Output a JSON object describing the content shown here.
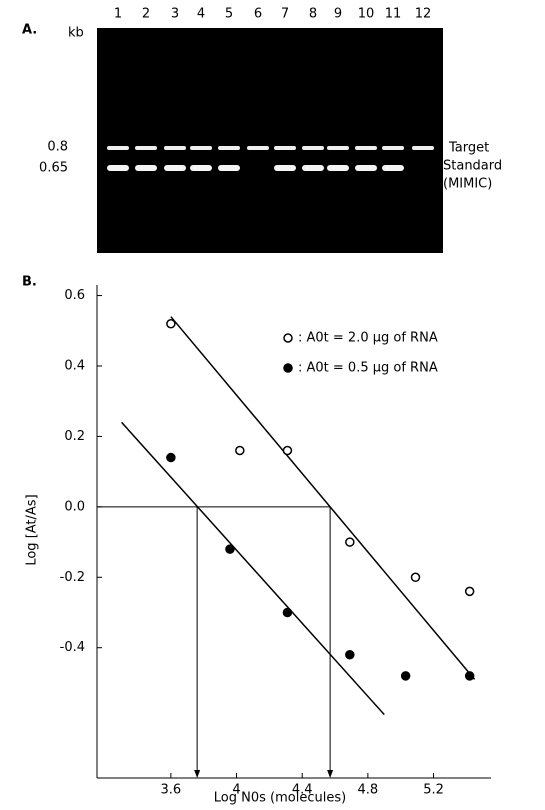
{
  "panel_a": {
    "label": "A.",
    "unit": "kb",
    "lanes": [
      "1",
      "2",
      "3",
      "4",
      "5",
      "6",
      "7",
      "8",
      "9",
      "10",
      "11",
      "12"
    ],
    "sizes": [
      "0.8",
      "0.65"
    ],
    "band_labels": [
      "Target",
      "Standard",
      "(MIMIC)"
    ]
  },
  "chart_data": {
    "type": "scatter",
    "panel_label": "B.",
    "x_label": "Log N0s (molecules)",
    "y_label": "Log [At/As]",
    "xlim": [
      3.15,
      5.55
    ],
    "ylim": [
      -0.77,
      0.63
    ],
    "xticks": [
      3.6,
      4.0,
      4.4,
      4.8,
      5.2
    ],
    "yticks": [
      0.6,
      0.4,
      0.2,
      {
        "value": 0,
        "label": "0.0"
      },
      -0.2,
      -0.4
    ],
    "series": [
      {
        "name": ": A0t = 2.0 µg of RNA",
        "marker": "open",
        "color": "#000000",
        "x": [
          3.6,
          4.02,
          4.31,
          4.69,
          5.09,
          5.42
        ],
        "values": [
          0.52,
          0.16,
          0.16,
          -0.1,
          -0.2,
          -0.24
        ],
        "fit": {
          "x": [
            3.6,
            5.45
          ],
          "values": [
            0.54,
            -0.49
          ]
        }
      },
      {
        "name": ": A0t = 0.5 µg of RNA",
        "marker": "filled",
        "color": "#000000",
        "x": [
          3.6,
          3.96,
          4.31,
          4.69,
          5.03,
          5.42
        ],
        "values": [
          0.14,
          -0.12,
          -0.3,
          -0.42,
          -0.48,
          -0.48
        ],
        "fit": {
          "x": [
            3.3,
            4.9
          ],
          "values": [
            0.24,
            -0.59
          ]
        }
      }
    ],
    "zero_line": 0,
    "intercepts": [
      3.76,
      4.57
    ]
  }
}
